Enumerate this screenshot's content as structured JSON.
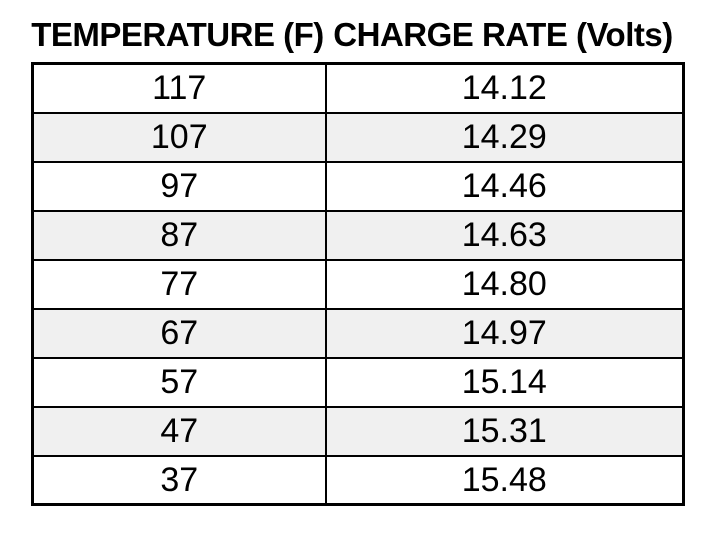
{
  "chart_data": {
    "type": "table",
    "columns": [
      "TEMPERATURE (F)",
      "CHARGE RATE (Volts)"
    ],
    "rows": [
      [
        "117",
        "14.12"
      ],
      [
        "107",
        "14.29"
      ],
      [
        "97",
        "14.46"
      ],
      [
        "87",
        "14.63"
      ],
      [
        "77",
        "14.80"
      ],
      [
        "67",
        "14.97"
      ],
      [
        "57",
        "15.14"
      ],
      [
        "47",
        "15.31"
      ],
      [
        "37",
        "15.48"
      ]
    ],
    "x_series_name": "TEMPERATURE (F)",
    "y_series_name": "CHARGE RATE (Volts)",
    "temperatures_f": [
      117,
      107,
      97,
      87,
      77,
      67,
      57,
      47,
      37
    ],
    "charge_rates_volts": [
      14.12,
      14.29,
      14.46,
      14.63,
      14.8,
      14.97,
      15.14,
      15.31,
      15.48
    ]
  },
  "colors": {
    "stripe": "#f0f0f0",
    "border": "#000000",
    "text": "#000000",
    "background": "#ffffff"
  }
}
